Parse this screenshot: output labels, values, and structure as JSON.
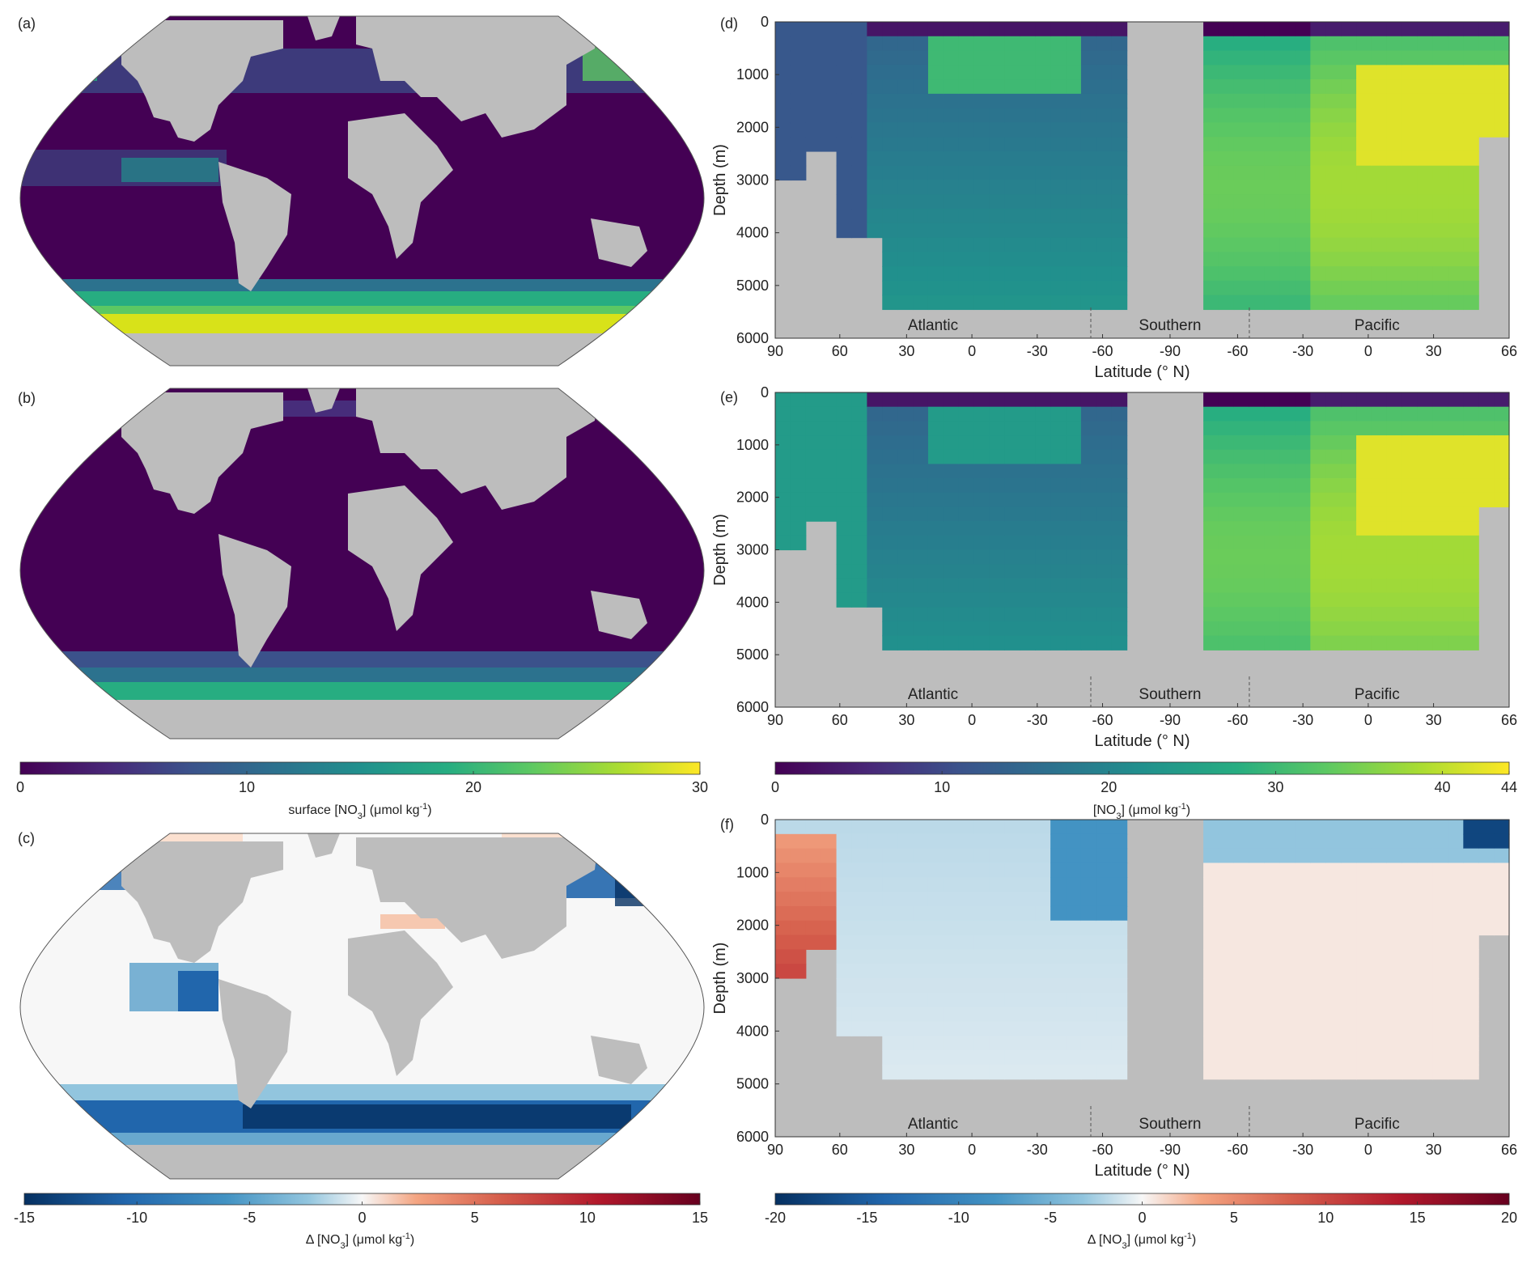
{
  "panels": {
    "a": "(a)",
    "b": "(b)",
    "c": "(c)",
    "d": "(d)",
    "e": "(e)",
    "f": "(f)"
  },
  "colorbars": {
    "surface": {
      "ticks": [
        "0",
        "10",
        "20",
        "30"
      ],
      "label_pre": "surface [NO",
      "label_sub": "3",
      "label_post": "] (μmol kg",
      "label_sup": "-1",
      "label_end": ")",
      "range": [
        0,
        30
      ],
      "colormap": "viridis"
    },
    "delta_surface": {
      "ticks": [
        "-15",
        "-10",
        "-5",
        "0",
        "5",
        "10",
        "15"
      ],
      "label_pre": "Δ [NO",
      "label_sub": "3",
      "label_post": "] (μmol kg",
      "label_sup": "-1",
      "label_end": ")",
      "range": [
        -15,
        15
      ],
      "colormap": "diverging-blue-red"
    },
    "section": {
      "ticks": [
        "0",
        "10",
        "20",
        "30",
        "40",
        "44"
      ],
      "label_pre": "[NO",
      "label_sub": "3",
      "label_post": "] (μmol kg",
      "label_sup": "-1",
      "label_end": ")",
      "range": [
        0,
        44
      ],
      "colormap": "viridis"
    },
    "delta_section": {
      "ticks": [
        "-20",
        "-15",
        "-10",
        "-5",
        "0",
        "5",
        "10",
        "15",
        "20"
      ],
      "label_pre": "Δ [NO",
      "label_sub": "3",
      "label_post": "] (μmol kg",
      "label_sup": "-1",
      "label_end": ")",
      "range": [
        -20,
        20
      ],
      "colormap": "diverging-blue-red"
    }
  },
  "section_axes": {
    "xticks": [
      "90",
      "60",
      "30",
      "0",
      "-30",
      "-60",
      "-90",
      "-60",
      "-30",
      "0",
      "30",
      "66"
    ],
    "yticks": [
      "0",
      "1000",
      "2000",
      "3000",
      "4000",
      "5000",
      "6000"
    ],
    "xlabel": "Latitude (° N)",
    "ylabel": "Depth (m)",
    "basins": [
      "Atlantic",
      "Southern",
      "Pacific"
    ]
  },
  "chart_data": [
    {
      "type": "heatmap",
      "panel": "(a)",
      "title": "",
      "projection": "Robinson",
      "colorbar": "surface [NO3] (μmol kg-1)",
      "range": [
        0,
        30
      ]
    },
    {
      "type": "heatmap",
      "panel": "(b)",
      "title": "",
      "projection": "Robinson",
      "colorbar": "surface [NO3] (μmol kg-1)",
      "range": [
        0,
        30
      ]
    },
    {
      "type": "heatmap",
      "panel": "(c)",
      "title": "",
      "projection": "Robinson",
      "colorbar": "Δ [NO3] (μmol kg-1)",
      "range": [
        -15,
        15
      ]
    },
    {
      "type": "heatmap",
      "panel": "(d)",
      "xlabel": "Latitude (° N)",
      "ylabel": "Depth (m)",
      "ylim": [
        6000,
        0
      ],
      "range": [
        0,
        44
      ],
      "sections": [
        "Atlantic",
        "Southern",
        "Pacific"
      ]
    },
    {
      "type": "heatmap",
      "panel": "(e)",
      "xlabel": "Latitude (° N)",
      "ylabel": "Depth (m)",
      "ylim": [
        6000,
        0
      ],
      "range": [
        0,
        44
      ],
      "sections": [
        "Atlantic",
        "Southern",
        "Pacific"
      ]
    },
    {
      "type": "heatmap",
      "panel": "(f)",
      "xlabel": "Latitude (° N)",
      "ylabel": "Depth (m)",
      "ylim": [
        6000,
        0
      ],
      "range": [
        -20,
        20
      ],
      "sections": [
        "Atlantic",
        "Southern",
        "Pacific"
      ]
    }
  ]
}
